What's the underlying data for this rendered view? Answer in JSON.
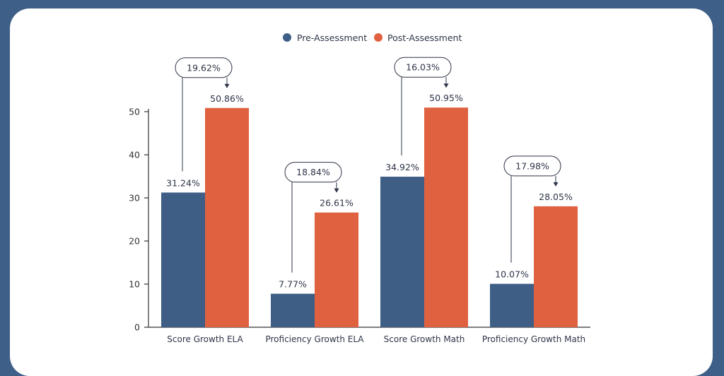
{
  "chart_data": {
    "type": "bar",
    "categories": [
      "Score Growth ELA",
      "Proficiency Growth ELA",
      "Score Growth Math",
      "Proficiency Growth Math"
    ],
    "series": [
      {
        "name": "Pre-Assessment",
        "values": [
          31.24,
          7.77,
          34.92,
          10.07
        ],
        "labels": [
          "31.24%",
          "7.77%",
          "34.92%",
          "10.07%"
        ]
      },
      {
        "name": "Post-Assessment",
        "values": [
          50.86,
          26.61,
          50.95,
          28.05
        ],
        "labels": [
          "50.86%",
          "26.61%",
          "50.95%",
          "28.05%"
        ]
      }
    ],
    "annotations": [
      "19.62%",
      "18.84%",
      "16.03%",
      "17.98%"
    ],
    "yticks": [
      0,
      10,
      20,
      30,
      40,
      50
    ],
    "ylim": [
      0,
      52
    ],
    "legend_position": "top-center",
    "grid": false,
    "colors": {
      "pre": "#3f5e86",
      "post": "#df6140",
      "axis": "#333333",
      "callout": "#2d3447"
    }
  }
}
